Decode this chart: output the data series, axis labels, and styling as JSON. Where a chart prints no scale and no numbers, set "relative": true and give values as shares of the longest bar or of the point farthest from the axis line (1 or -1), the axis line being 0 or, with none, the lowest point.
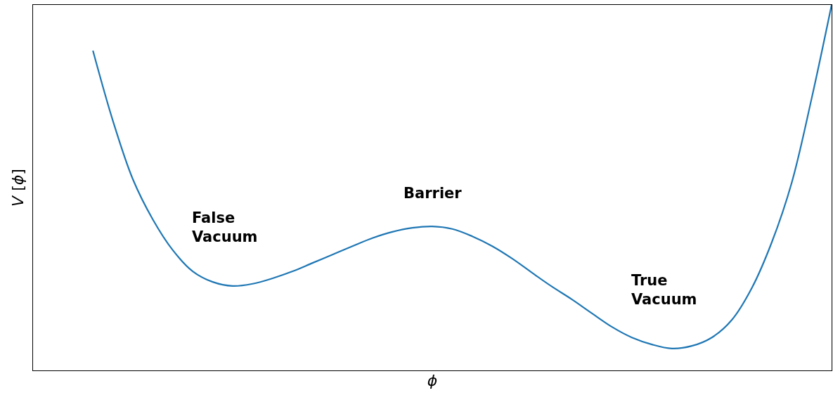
{
  "chart_data": {
    "type": "line",
    "relative": true,
    "xlabel": "ϕ",
    "ylabel": "V [ϕ]",
    "categories": [
      null,
      null,
      null,
      null,
      null,
      null,
      null,
      null,
      null,
      null,
      null,
      null,
      null,
      null,
      null,
      null,
      null,
      null,
      null,
      null,
      null,
      null,
      null,
      null,
      null,
      null,
      null,
      null,
      null,
      null,
      null,
      null,
      null,
      null,
      null,
      null,
      null,
      null,
      null,
      null,
      null
    ],
    "series": [
      {
        "color": "#1f77b4",
        "values": [
          null,
          null,
          null,
          0.875,
          0.683,
          0.523,
          0.413,
          0.329,
          0.271,
          0.242,
          0.231,
          0.237,
          0.252,
          0.271,
          0.294,
          0.317,
          0.34,
          0.362,
          0.379,
          0.39,
          0.394,
          0.387,
          0.367,
          0.34,
          0.306,
          0.267,
          0.229,
          0.194,
          0.156,
          0.119,
          0.09,
          0.071,
          0.06,
          0.067,
          0.09,
          0.138,
          0.225,
          0.35,
          0.513,
          0.744,
          1.0
        ]
      }
    ],
    "annotations": [
      "False\nVacuum",
      "Barrier",
      "True\nVacuum"
    ],
    "marker": "none",
    "line_style": "solid",
    "tick_labels": false
  }
}
